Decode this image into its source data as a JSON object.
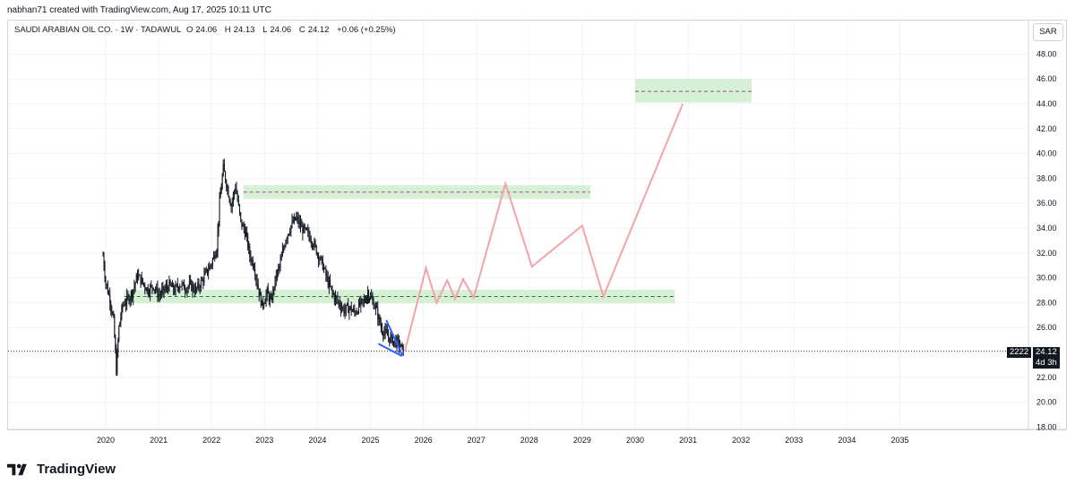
{
  "header": {
    "caption": "nabhan71 created with TradingView.com, Aug 17, 2025 10:11 UTC"
  },
  "legend": {
    "symbol": "SAUDI ARABIAN OIL CO. · 1W · TADAWUL",
    "open_label": "O",
    "open": "24.06",
    "high_label": "H",
    "high": "24.13",
    "low_label": "L",
    "low": "24.06",
    "close_label": "C",
    "close": "24.12",
    "change": "+0.06 (+0.25%)"
  },
  "currency": "SAR",
  "price_tag": {
    "marker": "2222",
    "price": "24.12",
    "countdown": "4d 3h"
  },
  "brand": {
    "name": "TradingView"
  },
  "colors": {
    "candle": "#131722",
    "zone_fill": "#d6f0d6",
    "zone_line": "#9c4a8a",
    "zone_line_green": "#2e7d32",
    "projection": "#f4a3a8",
    "wedge": "#2962ff"
  },
  "chart_data": {
    "type": "candlestick",
    "title": "",
    "xlabel": "",
    "ylabel": "",
    "ylim": [
      18,
      49.5
    ],
    "xlim": [
      2019.8,
      2036.2
    ],
    "y_ticks": [
      18,
      20,
      22,
      24,
      26,
      28,
      30,
      32,
      34,
      36,
      38,
      40,
      42,
      44,
      46,
      48
    ],
    "y_tick_labels": [
      "18.00",
      "20.00",
      "22.00",
      "24.00",
      "26.00",
      "28.00",
      "30.00",
      "32.00",
      "34.00",
      "36.00",
      "38.00",
      "40.00",
      "42.00",
      "44.00",
      "46.00",
      "48.00"
    ],
    "x_ticks": [
      2020,
      2021,
      2022,
      2023,
      2024,
      2025,
      2026,
      2027,
      2028,
      2029,
      2030,
      2031,
      2032,
      2033,
      2034,
      2035
    ],
    "x_tick_labels": [
      "2020",
      "2021",
      "2022",
      "2023",
      "2024",
      "2025",
      "2026",
      "2027",
      "2028",
      "2029",
      "2030",
      "2031",
      "2032",
      "2033",
      "2034",
      "2035"
    ],
    "grid": true,
    "price_path": [
      [
        2019.95,
        31.8
      ],
      [
        2020.0,
        29.6
      ],
      [
        2020.08,
        28.3
      ],
      [
        2020.15,
        26.5
      ],
      [
        2020.2,
        22.6
      ],
      [
        2020.25,
        26.0
      ],
      [
        2020.32,
        27.8
      ],
      [
        2020.4,
        28.2
      ],
      [
        2020.5,
        28.8
      ],
      [
        2020.6,
        30.2
      ],
      [
        2020.7,
        29.6
      ],
      [
        2020.8,
        29.0
      ],
      [
        2020.9,
        29.4
      ],
      [
        2021.0,
        28.6
      ],
      [
        2021.1,
        29.0
      ],
      [
        2021.2,
        29.4
      ],
      [
        2021.3,
        29.0
      ],
      [
        2021.4,
        29.5
      ],
      [
        2021.5,
        29.2
      ],
      [
        2021.6,
        29.4
      ],
      [
        2021.7,
        29.0
      ],
      [
        2021.8,
        29.6
      ],
      [
        2021.9,
        30.4
      ],
      [
        2022.0,
        31.2
      ],
      [
        2022.1,
        32.5
      ],
      [
        2022.15,
        36.0
      ],
      [
        2022.22,
        38.8
      ],
      [
        2022.3,
        37.2
      ],
      [
        2022.37,
        35.8
      ],
      [
        2022.45,
        37.4
      ],
      [
        2022.55,
        34.5
      ],
      [
        2022.65,
        33.5
      ],
      [
        2022.72,
        31.8
      ],
      [
        2022.8,
        31.0
      ],
      [
        2022.88,
        29.2
      ],
      [
        2022.95,
        27.8
      ],
      [
        2023.05,
        28.8
      ],
      [
        2023.12,
        28.0
      ],
      [
        2023.2,
        29.8
      ],
      [
        2023.3,
        31.2
      ],
      [
        2023.4,
        33.2
      ],
      [
        2023.5,
        34.2
      ],
      [
        2023.6,
        34.8
      ],
      [
        2023.7,
        34.0
      ],
      [
        2023.8,
        33.6
      ],
      [
        2023.9,
        33.0
      ],
      [
        2024.0,
        32.0
      ],
      [
        2024.1,
        31.0
      ],
      [
        2024.2,
        29.6
      ],
      [
        2024.3,
        28.6
      ],
      [
        2024.4,
        28.0
      ],
      [
        2024.5,
        27.4
      ],
      [
        2024.6,
        27.6
      ],
      [
        2024.7,
        27.2
      ],
      [
        2024.8,
        27.8
      ],
      [
        2024.9,
        28.2
      ],
      [
        2024.95,
        28.8
      ],
      [
        2025.0,
        28.4
      ],
      [
        2025.1,
        27.6
      ],
      [
        2025.2,
        26.0
      ],
      [
        2025.3,
        25.4
      ],
      [
        2025.4,
        25.0
      ],
      [
        2025.5,
        24.8
      ],
      [
        2025.6,
        24.3
      ],
      [
        2025.62,
        24.12
      ]
    ],
    "last_price": 24.12,
    "zones": [
      {
        "x0": 2022.6,
        "x1": 2029.15,
        "y0": 36.35,
        "y1": 37.45,
        "mid": 36.9,
        "line": "purple"
      },
      {
        "x0": 2020.35,
        "x1": 2030.75,
        "y0": 27.95,
        "y1": 29.05,
        "mid": 28.5,
        "line": "green"
      },
      {
        "x0": 2030.0,
        "x1": 2032.2,
        "y0": 44.1,
        "y1": 46.0,
        "mid": 45.0,
        "line": "purple"
      }
    ],
    "projection": [
      [
        2025.65,
        24.1
      ],
      [
        2026.05,
        30.8
      ],
      [
        2026.25,
        28.0
      ],
      [
        2026.45,
        29.8
      ],
      [
        2026.6,
        28.3
      ],
      [
        2026.75,
        29.9
      ],
      [
        2026.95,
        28.4
      ],
      [
        2027.55,
        37.6
      ],
      [
        2028.05,
        30.9
      ],
      [
        2029.0,
        34.2
      ],
      [
        2029.4,
        28.5
      ],
      [
        2030.9,
        44.0
      ]
    ],
    "wedge": [
      [
        [
          2025.15,
          24.7
        ],
        [
          2025.6,
          23.7
        ]
      ],
      [
        [
          2025.3,
          26.6
        ],
        [
          2025.6,
          23.8
        ]
      ]
    ]
  }
}
